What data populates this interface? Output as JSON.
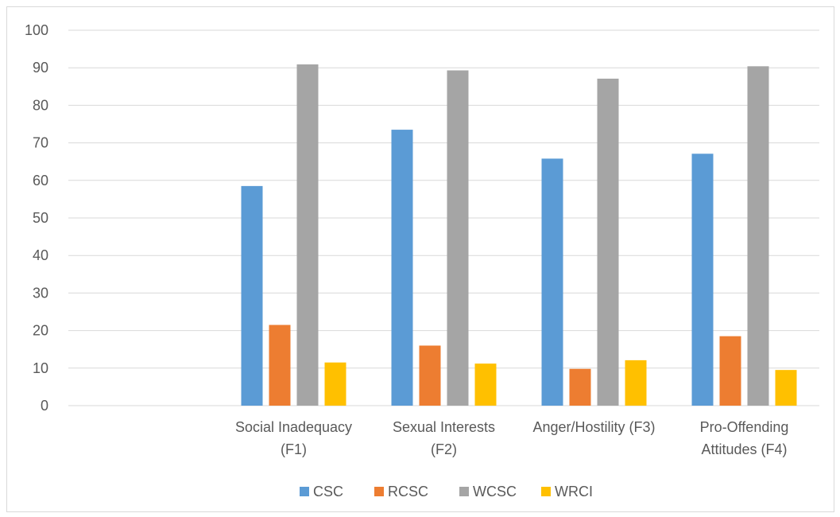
{
  "chart_data": {
    "type": "bar",
    "title": "",
    "xlabel": "",
    "ylabel": "",
    "ylim": [
      0,
      100
    ],
    "yticks": [
      0,
      10,
      20,
      30,
      40,
      50,
      60,
      70,
      80,
      90,
      100
    ],
    "grid": true,
    "legend_position": "bottom",
    "categories": [
      [
        "",
        ""
      ],
      [
        "Social Inadequacy",
        "(F1)"
      ],
      [
        "Sexual Interests",
        "(F2)"
      ],
      [
        "Anger/Hostility (F3)",
        ""
      ],
      [
        "Pro-Offending",
        "Attitudes (F4)"
      ]
    ],
    "series": [
      {
        "name": "CSC",
        "color": "#5b9bd5",
        "values": [
          null,
          58.5,
          73.5,
          65.8,
          67.1
        ]
      },
      {
        "name": "RCSC",
        "color": "#ed7d31",
        "values": [
          null,
          21.5,
          16.0,
          9.8,
          18.5
        ]
      },
      {
        "name": "WCSC",
        "color": "#a5a5a5",
        "values": [
          null,
          90.9,
          89.3,
          87.1,
          90.4
        ]
      },
      {
        "name": "WRCI",
        "color": "#ffc000",
        "values": [
          null,
          11.5,
          11.2,
          12.1,
          9.5
        ]
      }
    ]
  }
}
